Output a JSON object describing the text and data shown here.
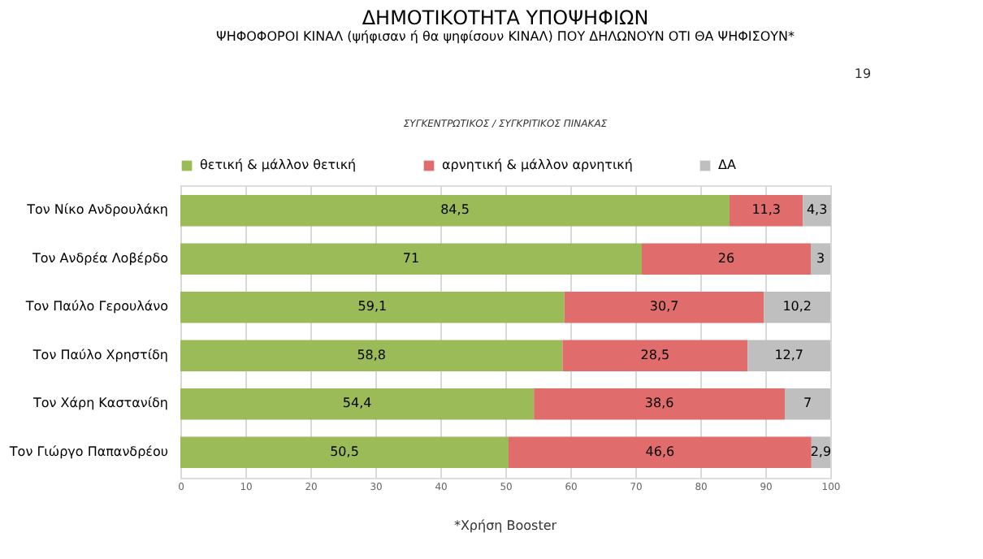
{
  "chart_data": {
    "type": "bar",
    "orientation": "horizontal",
    "stacked": true,
    "title": "ΔΗΜΟΤΙΚΟΤΗΤΑ ΥΠΟΨΗΦΙΩΝ",
    "subtitle": "ΨΗΦΟΦΟΡΟΙ ΚΙΝΑΛ (ψήφισαν ή θα ψηφίσουν ΚΙΝΑΛ) ΠΟΥ ΔΗΛΩΝΟΥΝ ΟΤΙ ΘΑ ΨΗΦΙΣΟΥΝ*",
    "annotations": [
      "ΣΥΓΚΕΝΤΡΩΤΙΚΟΣ / ΣΥΓΚΡΙΤΙΚΟΣ ΠΙΝΑΚΑΣ",
      "*Χρήση Booster",
      "19"
    ],
    "categories": [
      "Τον Νίκο Ανδρουλάκη",
      "Τον Ανδρέα Λοβέρδο",
      "Τον Παύλο Γερουλάνο",
      "Τον Παύλο Χρηστίδη",
      "Τον Χάρη Καστανίδη",
      "Τον Γιώργο Παπανδρέου"
    ],
    "series": [
      {
        "name": "θετική & μάλλον θετική",
        "color": "#9bbb59",
        "values": [
          84.5,
          71,
          59.1,
          58.8,
          54.4,
          50.5
        ],
        "value_labels": [
          "84,5",
          "71",
          "59,1",
          "58,8",
          "54,4",
          "50,5"
        ]
      },
      {
        "name": "αρνητική & μάλλον αρνητική",
        "color": "#e06c6c",
        "values": [
          11.3,
          26,
          30.7,
          28.5,
          38.6,
          46.6
        ],
        "value_labels": [
          "11,3",
          "26",
          "30,7",
          "28,5",
          "38,6",
          "46,6"
        ]
      },
      {
        "name": "ΔΑ",
        "color": "#bfbfbf",
        "values": [
          4.3,
          3,
          10.2,
          12.7,
          7,
          2.9
        ],
        "value_labels": [
          "4,3",
          "3",
          "10,2",
          "12,7",
          "7",
          "2,9"
        ]
      }
    ],
    "xlim": [
      0,
      100
    ],
    "xticks": [
      0,
      10,
      20,
      30,
      40,
      50,
      60,
      70,
      80,
      90,
      100
    ],
    "grid": "x",
    "legend": "top"
  }
}
